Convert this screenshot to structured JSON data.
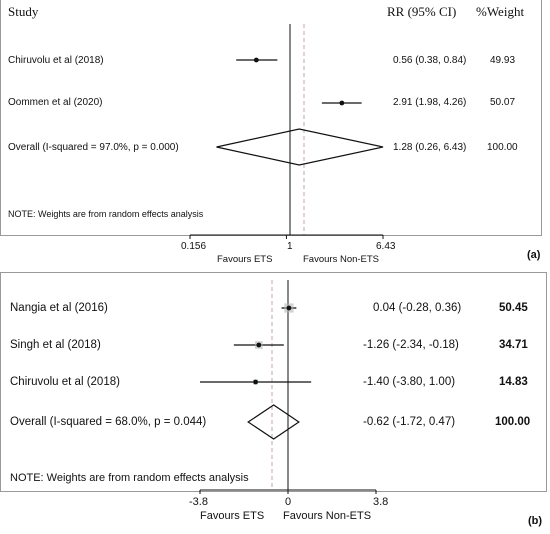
{
  "chart_data": [
    {
      "type": "forest",
      "panel_label": "(a)",
      "headers": {
        "study": "Study",
        "effect": "RR (95% CI)",
        "weight": "%Weight"
      },
      "studies": [
        {
          "name": "Chiruvolu et al (2018)",
          "estimate": 0.56,
          "lower": 0.38,
          "upper": 0.84,
          "ci_text": "0.56 (0.38, 0.84)",
          "weight_text": "49.93"
        },
        {
          "name": "Oommen et al (2020)",
          "estimate": 2.91,
          "lower": 1.98,
          "upper": 4.26,
          "ci_text": "2.91 (1.98, 4.26)",
          "weight_text": "50.07"
        }
      ],
      "overall": {
        "name": "Overall  (I-squared = 97.0%, p = 0.000)",
        "estimate": 1.28,
        "lower": 0.26,
        "upper": 6.43,
        "ci_text": "1.28 (0.26, 6.43)",
        "weight_text": "100.00"
      },
      "note": "NOTE: Weights are from random effects analysis",
      "scale": "log",
      "null_value": 1,
      "xlim": [
        0.156,
        6.43
      ],
      "ticks": [
        "0.156",
        "1",
        "6.43"
      ],
      "favours_left": "Favours ETS",
      "favours_right": "Favours Non-ETS"
    },
    {
      "type": "forest",
      "panel_label": "(b)",
      "studies": [
        {
          "name": "Nangia et al (2016)",
          "estimate": 0.04,
          "lower": -0.28,
          "upper": 0.36,
          "ci_text": "0.04 (-0.28, 0.36)",
          "weight_text": "50.45"
        },
        {
          "name": "Singh et al (2018)",
          "estimate": -1.26,
          "lower": -2.34,
          "upper": -0.18,
          "ci_text": "-1.26 (-2.34, -0.18)",
          "weight_text": "34.71"
        },
        {
          "name": "Chiruvolu et al (2018)",
          "estimate": -1.4,
          "lower": -3.8,
          "upper": 1.0,
          "ci_text": "-1.40 (-3.80, 1.00)",
          "weight_text": "14.83"
        }
      ],
      "overall": {
        "name": "Overall  (I-squared = 68.0%, p = 0.044)",
        "estimate": -0.62,
        "lower": -1.72,
        "upper": 0.47,
        "ci_text": "-0.62 (-1.72, 0.47)",
        "weight_text": "100.00"
      },
      "note": "NOTE: Weights are from random effects analysis",
      "scale": "linear",
      "null_value": 0,
      "xlim": [
        -3.8,
        3.8
      ],
      "ticks": [
        "-3.8",
        "0",
        "3.8"
      ],
      "favours_left": "Favours ETS",
      "favours_right": "Favours Non-ETS"
    }
  ],
  "colors": {
    "line": "#111111",
    "dashed_line": "#c9a3a3",
    "frame": "#9a9a9a",
    "marker_box": "#b5b5b5"
  }
}
